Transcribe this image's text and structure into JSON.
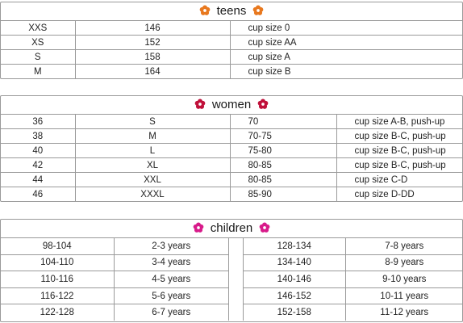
{
  "teens": {
    "title": "teens",
    "flower_color": "#e8781e",
    "rows": [
      [
        "XXS",
        "146",
        "cup size 0"
      ],
      [
        "XS",
        "152",
        "cup size AA"
      ],
      [
        "S",
        "158",
        "cup size A"
      ],
      [
        "M",
        "164",
        "cup size B"
      ]
    ]
  },
  "women": {
    "title": "women",
    "flower_color": "#c0103a",
    "rows": [
      [
        "36",
        "S",
        "70",
        "cup size A-B, push-up"
      ],
      [
        "38",
        "M",
        "70-75",
        "cup size B-C, push-up"
      ],
      [
        "40",
        "L",
        "75-80",
        "cup size B-C, push-up"
      ],
      [
        "42",
        "XL",
        "80-85",
        "cup size B-C, push-up"
      ],
      [
        "44",
        "XXL",
        "80-85",
        "cup size C-D"
      ],
      [
        "46",
        "XXXL",
        "85-90",
        "cup size D-DD"
      ]
    ]
  },
  "children": {
    "title": "children",
    "flower_color": "#d81b8a",
    "left_rows": [
      [
        "98-104",
        "2-3 years"
      ],
      [
        "104-110",
        "3-4 years"
      ],
      [
        "110-116",
        "4-5 years"
      ],
      [
        "116-122",
        "5-6 years"
      ],
      [
        "122-128",
        "6-7 years"
      ]
    ],
    "right_rows": [
      [
        "128-134",
        "7-8 years"
      ],
      [
        "134-140",
        "8-9 years"
      ],
      [
        "140-146",
        "9-10 years"
      ],
      [
        "146-152",
        "10-11 years"
      ],
      [
        "152-158",
        "11-12 years"
      ]
    ]
  }
}
